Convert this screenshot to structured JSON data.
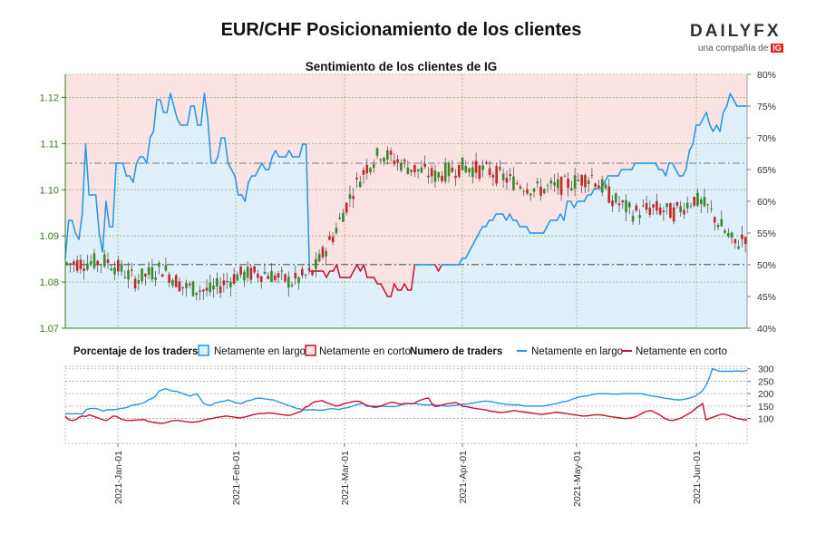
{
  "header": {
    "title": "EUR/CHF Posicionamiento de los clientes",
    "subtitle": "Sentimiento de los clientes de IG",
    "logo_text": "DAILYFX",
    "logo_sub": "una compañía de",
    "logo_badge": "IG"
  },
  "legend": {
    "pct_heading": "Porcentaje de los traders",
    "pct_long": "Netamente en largo",
    "pct_short": "Netamente en corto",
    "num_heading": "Numero de traders",
    "num_long": "Netamente en largo",
    "num_short": "Netamente en corto"
  },
  "colors": {
    "long": "#2196e8",
    "short": "#c8102e",
    "long_fill": "#dff0fa",
    "short_fill": "#fbe3e3",
    "candle_up": "#3a8a2a",
    "candle_down": "#c62828",
    "price_axis": "#3a7d1e"
  },
  "chart_data": [
    {
      "type": "line",
      "name": "price-and-sentiment",
      "ylim_price": [
        1.07,
        1.125
      ],
      "price_ticks": [
        "1.07",
        "1.08",
        "1.09",
        "1.10",
        "1.11",
        "1.12"
      ],
      "ylim_pct": [
        40,
        80
      ],
      "pct_ticks": [
        "40%",
        "45%",
        "50%",
        "55%",
        "60%",
        "65%",
        "70%",
        "75%",
        "80%"
      ],
      "reference_levels": {
        "price": 1.0838,
        "pct": 66
      },
      "net_long_pct": [
        51,
        57,
        57,
        55,
        54,
        58,
        69,
        61,
        61,
        61,
        55,
        52,
        60,
        56,
        56,
        66,
        66,
        66,
        64,
        64,
        63,
        66,
        67,
        67,
        66,
        70,
        71,
        76,
        76,
        74,
        74,
        77,
        75,
        73,
        72,
        72,
        72,
        75,
        75,
        72,
        72,
        77,
        73,
        66,
        66,
        67,
        70,
        70,
        66,
        65,
        64,
        61,
        61,
        60,
        63,
        64,
        64,
        65,
        66,
        65,
        65,
        67,
        68,
        67,
        67,
        67,
        68,
        67,
        67,
        67,
        69,
        69,
        49,
        49,
        49,
        49,
        49,
        48,
        49,
        49,
        50,
        48,
        48,
        48,
        48,
        49,
        50,
        49,
        50,
        48,
        48,
        48,
        47,
        47,
        46,
        45,
        45,
        47,
        46,
        46,
        47,
        46,
        46,
        50,
        50,
        50,
        50,
        50,
        50,
        50,
        49,
        50,
        50,
        50,
        50,
        50,
        50,
        51,
        51,
        52,
        53,
        54,
        55,
        56,
        56,
        57,
        57,
        58,
        58,
        58,
        57,
        58,
        57,
        57,
        56,
        56,
        56,
        55,
        55,
        55,
        55,
        55,
        56,
        57,
        57,
        57,
        58,
        57,
        60,
        60,
        59,
        60,
        60,
        60,
        61,
        61,
        62,
        62,
        62,
        63,
        64,
        64,
        64,
        64,
        65,
        65,
        65,
        65,
        66,
        66,
        66,
        66,
        66,
        66,
        66,
        65,
        65,
        64,
        66,
        66,
        65,
        64,
        64,
        65,
        68,
        69,
        72,
        72,
        73,
        74,
        72,
        71,
        72,
        71,
        74,
        75,
        77,
        76,
        75,
        75,
        75,
        75
      ]
    },
    {
      "type": "line",
      "name": "number-of-traders",
      "ylim": [
        0,
        310
      ],
      "ticks": [
        "100",
        "150",
        "200",
        "250",
        "300"
      ],
      "x_ticks": [
        "2021-Jan-01",
        "2021-Feb-01",
        "2021-Mar-01",
        "2021-Apr-01",
        "2021-May-01",
        "2021-Jun-01"
      ],
      "series": [
        {
          "name": "Netamente en largo",
          "values": [
            118,
            120,
            118,
            120,
            119,
            118,
            135,
            140,
            140,
            140,
            135,
            130,
            135,
            135,
            135,
            138,
            140,
            142,
            145,
            152,
            155,
            157,
            160,
            165,
            175,
            180,
            188,
            210,
            215,
            220,
            215,
            210,
            210,
            205,
            200,
            195,
            190,
            195,
            200,
            180,
            160,
            155,
            152,
            160,
            165,
            168,
            170,
            175,
            170,
            165,
            162,
            160,
            168,
            172,
            175,
            180,
            182,
            180,
            178,
            176,
            175,
            170,
            165,
            160,
            155,
            150,
            145,
            140,
            138,
            135,
            135,
            135,
            135,
            133,
            133,
            135,
            138,
            140,
            138,
            136,
            140,
            142,
            145,
            150,
            155,
            158,
            160,
            155,
            150,
            150,
            150,
            150,
            150,
            148,
            148,
            148,
            150,
            155,
            158,
            160,
            160,
            160,
            158,
            156,
            155,
            155,
            155,
            154,
            153,
            152,
            150,
            150,
            152,
            154,
            156,
            158,
            158,
            160,
            162,
            165,
            168,
            170,
            170,
            168,
            165,
            162,
            160,
            158,
            156,
            155,
            155,
            155,
            152,
            150,
            150,
            150,
            150,
            150,
            150,
            152,
            155,
            158,
            160,
            165,
            168,
            170,
            175,
            180,
            185,
            188,
            190,
            192,
            195,
            198,
            200,
            200,
            200,
            199,
            198,
            198,
            198,
            200,
            200,
            200,
            200,
            200,
            200,
            198,
            195,
            192,
            190,
            188,
            185,
            182,
            180,
            178,
            176,
            175,
            175,
            178,
            180,
            185,
            190,
            200,
            210,
            230,
            260,
            300,
            295,
            290,
            290,
            290,
            290,
            290,
            292,
            290,
            290,
            295
          ]
        },
        {
          "name": "Netamente en corto",
          "values": [
            110,
            95,
            92,
            95,
            105,
            110,
            108,
            115,
            110,
            105,
            100,
            95,
            92,
            100,
            110,
            108,
            100,
            95,
            92,
            92,
            93,
            94,
            95,
            96,
            90,
            86,
            84,
            82,
            80,
            82,
            86,
            90,
            92,
            92,
            90,
            88,
            86,
            85,
            86,
            88,
            92,
            96,
            98,
            100,
            104,
            106,
            108,
            110,
            108,
            106,
            104,
            102,
            105,
            108,
            112,
            116,
            118,
            120,
            120,
            122,
            122,
            120,
            118,
            116,
            114,
            112,
            115,
            120,
            125,
            130,
            145,
            150,
            162,
            168,
            170,
            172,
            165,
            160,
            155,
            150,
            152,
            158,
            162,
            165,
            168,
            170,
            168,
            160,
            150,
            150,
            145,
            146,
            150,
            155,
            160,
            165,
            165,
            160,
            158,
            160,
            160,
            159,
            162,
            170,
            175,
            180,
            182,
            160,
            148,
            150,
            155,
            158,
            160,
            162,
            165,
            158,
            150,
            148,
            145,
            142,
            140,
            138,
            136,
            134,
            130,
            128,
            126,
            124,
            125,
            127,
            130,
            132,
            130,
            128,
            126,
            124,
            122,
            120,
            118,
            116,
            118,
            120,
            122,
            125,
            124,
            122,
            120,
            118,
            116,
            114,
            112,
            110,
            110,
            112,
            114,
            115,
            115,
            113,
            110,
            108,
            106,
            104,
            102,
            100,
            100,
            102,
            105,
            110,
            118,
            125,
            130,
            132,
            125,
            118,
            110,
            100,
            94,
            92,
            94,
            98,
            104,
            112,
            120,
            128,
            140,
            150,
            160,
            95,
            100,
            105,
            110,
            115,
            118,
            115,
            110,
            105,
            100,
            98,
            95,
            95
          ]
        }
      ]
    }
  ]
}
